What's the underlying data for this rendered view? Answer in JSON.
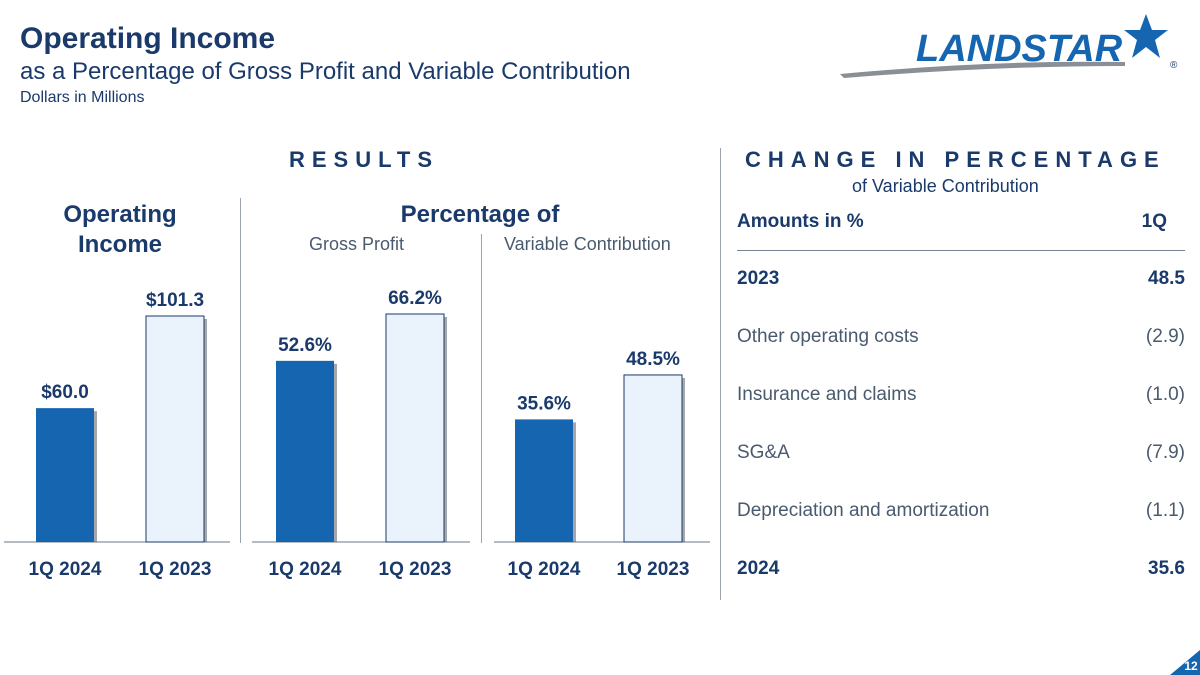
{
  "header": {
    "title": "Operating Income",
    "subtitle": "as a Percentage of Gross Profit and Variable Contribution",
    "units": "Dollars in Millions"
  },
  "logo": {
    "text": "LANDSTAR",
    "reg": "®"
  },
  "results": {
    "title": "RESULTS",
    "op_income_head_line1": "Operating",
    "op_income_head_line2": "Income",
    "pct_head": "Percentage of",
    "gp_label": "Gross Profit",
    "vc_label": "Variable Contribution"
  },
  "chart_data": [
    {
      "type": "bar",
      "title": "Operating Income",
      "categories": [
        "1Q 2024",
        "1Q 2023"
      ],
      "values": [
        60.0,
        101.3
      ],
      "labels": [
        "$60.0",
        "$101.3"
      ],
      "ylim": [
        0,
        115
      ]
    },
    {
      "type": "bar",
      "title": "Percentage of Gross Profit",
      "categories": [
        "1Q 2024",
        "1Q 2023"
      ],
      "values": [
        52.6,
        66.2
      ],
      "labels": [
        "52.6%",
        "66.2%"
      ],
      "ylim": [
        0,
        75
      ]
    },
    {
      "type": "bar",
      "title": "Percentage of Variable Contribution",
      "categories": [
        "1Q 2024",
        "1Q 2023"
      ],
      "values": [
        35.6,
        48.5
      ],
      "labels": [
        "35.6%",
        "48.5%"
      ],
      "ylim": [
        0,
        75
      ]
    }
  ],
  "change": {
    "title": "CHANGE IN PERCENTAGE",
    "subtitle": "of Variable Contribution",
    "header": {
      "label": "Amounts in %",
      "value": "1Q"
    },
    "rows": [
      {
        "label": "2023",
        "value": "48.5",
        "style": "bold"
      },
      {
        "label": "Other operating costs",
        "value": "(2.9)",
        "style": "light"
      },
      {
        "label": "Insurance and claims",
        "value": "(1.0)",
        "style": "light"
      },
      {
        "label": "SG&A",
        "value": "(7.9)",
        "style": "light"
      },
      {
        "label": "Depreciation and amortization",
        "value": "(1.1)",
        "style": "light"
      },
      {
        "label": "2024",
        "value": "35.6",
        "style": "bold"
      }
    ]
  },
  "page_number": "12",
  "colors": {
    "navy": "#1a3a6b",
    "blue": "#1565b0",
    "light_bar": "#eaf2fb"
  }
}
